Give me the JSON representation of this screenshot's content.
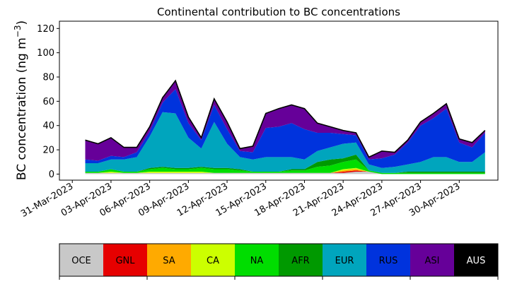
{
  "chart_data": {
    "type": "area",
    "stacked": true,
    "title": "Continental contribution to BC concentrations",
    "ylabel": "BC concentration (ng m",
    "ylabel_sup": "−3",
    "ylabel_close": ")",
    "xlabel": "",
    "xlim": [
      "2023-03-30",
      "2023-05-03"
    ],
    "ylim": [
      -5,
      126
    ],
    "yticks": [
      0,
      20,
      40,
      60,
      80,
      100,
      120
    ],
    "xticks": [
      "31-Mar-2023",
      "03-Apr-2023",
      "06-Apr-2023",
      "09-Apr-2023",
      "12-Apr-2023",
      "15-Apr-2023",
      "18-Apr-2023",
      "21-Apr-2023",
      "24-Apr-2023",
      "27-Apr-2023",
      "30-Apr-2023"
    ],
    "xtick_dates": [
      "2023-03-31",
      "2023-04-03",
      "2023-04-06",
      "2023-04-09",
      "2023-04-12",
      "2023-04-15",
      "2023-04-18",
      "2023-04-21",
      "2023-04-24",
      "2023-04-27",
      "2023-04-30"
    ],
    "dates": [
      "2023-04-01",
      "2023-04-02",
      "2023-04-03",
      "2023-04-04",
      "2023-04-05",
      "2023-04-06",
      "2023-04-07",
      "2023-04-08",
      "2023-04-09",
      "2023-04-10",
      "2023-04-11",
      "2023-04-12",
      "2023-04-13",
      "2023-04-14",
      "2023-04-15",
      "2023-04-16",
      "2023-04-17",
      "2023-04-18",
      "2023-04-19",
      "2023-04-20",
      "2023-04-21",
      "2023-04-22",
      "2023-04-23",
      "2023-04-24",
      "2023-04-25",
      "2023-04-26",
      "2023-04-27",
      "2023-04-28",
      "2023-04-29",
      "2023-04-30",
      "2023-05-01",
      "2023-05-02"
    ],
    "series": [
      {
        "name": "OCE",
        "color": "#c8c8c8",
        "values": [
          1,
          1,
          1,
          1,
          1,
          1,
          1,
          1,
          1,
          1,
          1,
          1,
          1,
          1,
          1,
          1,
          1,
          1,
          1,
          1,
          1,
          2,
          2,
          0,
          0,
          0,
          0,
          0,
          0,
          0,
          0,
          0
        ]
      },
      {
        "name": "GNL",
        "color": "#e60000",
        "values": [
          0,
          0,
          0,
          0,
          0,
          0,
          0,
          0,
          0,
          0,
          0,
          0,
          0,
          0,
          0,
          0,
          0,
          0,
          0,
          0,
          1,
          1,
          0,
          0,
          0,
          0,
          0,
          0,
          0,
          0,
          0,
          0
        ]
      },
      {
        "name": "SA",
        "color": "#ffaa00",
        "values": [
          0,
          0,
          0,
          0,
          0,
          0,
          0,
          0,
          0,
          0,
          0,
          0,
          0,
          0,
          0,
          0,
          0,
          0,
          0,
          0,
          1,
          1,
          0,
          0,
          0,
          0,
          0,
          0,
          0,
          0,
          0,
          0
        ]
      },
      {
        "name": "CA",
        "color": "#ccff00",
        "values": [
          0,
          0,
          1,
          0,
          0,
          1,
          1,
          1,
          1,
          1,
          0,
          0,
          0,
          0,
          0,
          0,
          0,
          0,
          0,
          0,
          1,
          1,
          0,
          0,
          0,
          0,
          0,
          0,
          0,
          0,
          0,
          0
        ]
      },
      {
        "name": "NA",
        "color": "#00dd00",
        "values": [
          1,
          1,
          2,
          1,
          1,
          2,
          3,
          2,
          2,
          3,
          3,
          3,
          2,
          1,
          1,
          1,
          2,
          2,
          5,
          6,
          6,
          7,
          1,
          1,
          1,
          1,
          1,
          1,
          1,
          1,
          1,
          1
        ]
      },
      {
        "name": "AFR",
        "color": "#009900",
        "values": [
          0,
          0,
          0,
          0,
          0,
          1,
          1,
          1,
          1,
          1,
          1,
          1,
          1,
          0,
          0,
          0,
          1,
          1,
          4,
          5,
          3,
          4,
          0,
          0,
          0,
          1,
          1,
          1,
          1,
          1,
          1,
          1
        ]
      },
      {
        "name": "EUR",
        "color": "#00a5bd",
        "values": [
          7,
          7,
          8,
          10,
          12,
          26,
          45,
          45,
          25,
          15,
          38,
          20,
          10,
          10,
          12,
          12,
          10,
          8,
          9,
          10,
          12,
          10,
          5,
          4,
          5,
          6,
          8,
          12,
          12,
          8,
          8,
          16
        ]
      },
      {
        "name": "RUS",
        "color": "#0033dd",
        "values": [
          3,
          2,
          3,
          2,
          4,
          4,
          8,
          20,
          12,
          7,
          14,
          12,
          5,
          6,
          24,
          25,
          28,
          25,
          15,
          12,
          8,
          6,
          4,
          8,
          10,
          18,
          30,
          32,
          40,
          16,
          12,
          16
        ]
      },
      {
        "name": "ASI",
        "color": "#660099",
        "values": [
          16,
          14,
          15,
          8,
          4,
          4,
          4,
          7,
          5,
          2,
          5,
          6,
          2,
          5,
          12,
          15,
          15,
          17,
          8,
          5,
          3,
          2,
          2,
          6,
          2,
          2,
          3,
          4,
          4,
          3,
          4,
          2
        ]
      },
      {
        "name": "AUS",
        "color": "#000000",
        "values": [
          0,
          0,
          0,
          0,
          0,
          0,
          0,
          0,
          0,
          0,
          0,
          0,
          0,
          0,
          0,
          0,
          0,
          0,
          0,
          0,
          0,
          0,
          0,
          0,
          0,
          0,
          0,
          0,
          0,
          0,
          0,
          0
        ]
      }
    ],
    "legend": {
      "placement": "below",
      "labels": [
        "OCE",
        "GNL",
        "SA",
        "CA",
        "NA",
        "AFR",
        "EUR",
        "RUS",
        "ASI",
        "AUS"
      ]
    }
  }
}
